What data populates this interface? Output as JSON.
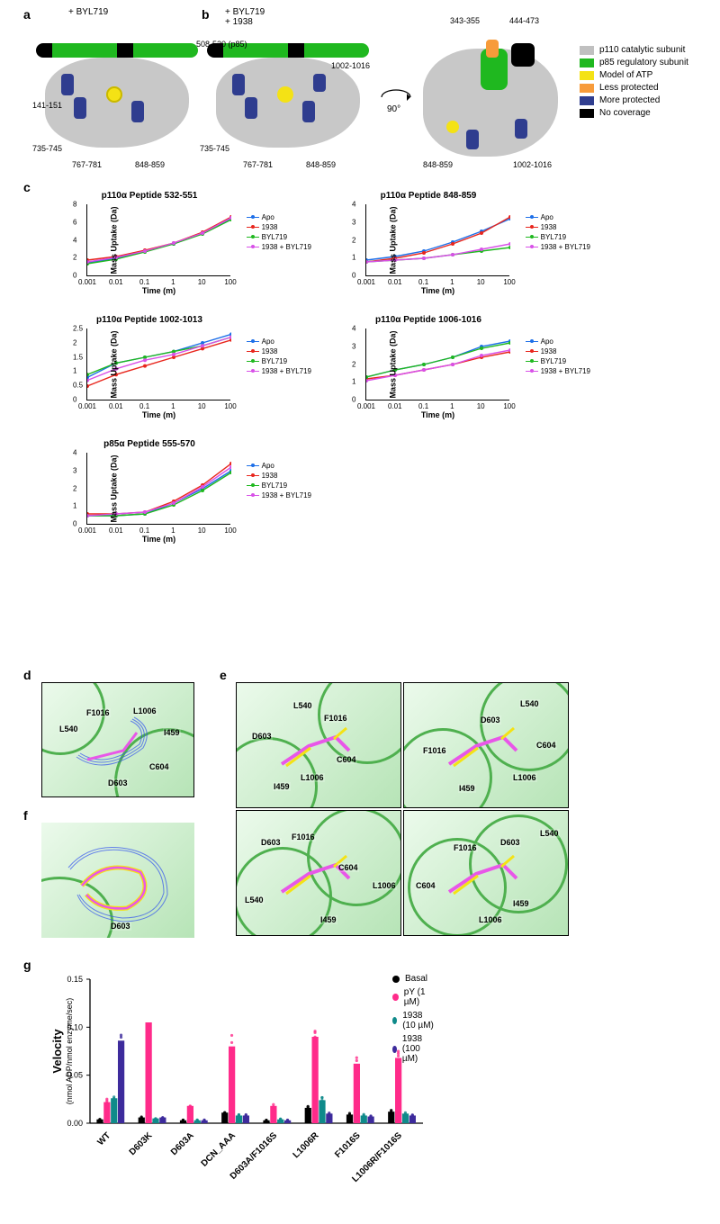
{
  "panels": {
    "a": "a",
    "b": "b",
    "c": "c",
    "d": "d",
    "e": "e",
    "f": "f",
    "g": "g"
  },
  "panel_a_title": "+ BYL719",
  "panel_b_title": "+ BYL719\n+ 1938",
  "rotate_label": "90°",
  "struct_region_labels": {
    "a1": "141-151",
    "a2": "735-745",
    "a3": "767-781",
    "a4": "848-859",
    "b1": "508-520 (p85)",
    "b2": "735-745",
    "b3": "767-781",
    "b4": "848-859",
    "b5": "1002-1016",
    "c1": "343-355",
    "c2": "444-473",
    "c3": "848-859",
    "c4": "1002-1016"
  },
  "legend_struct": [
    {
      "label": "p110 catalytic subunit",
      "color": "#c0c0c0"
    },
    {
      "label": "p85 regulatory subunit",
      "color": "#1fb81f"
    },
    {
      "label": "Model of ATP",
      "color": "#f4e215"
    },
    {
      "label": "Less protected",
      "color": "#f79b3a"
    },
    {
      "label": "More protected",
      "color": "#2f3d8f"
    },
    {
      "label": "No coverage",
      "color": "#000000"
    }
  ],
  "charts_common": {
    "ylabel": "Mass  Uptake (Da)",
    "xlabel": "Time (m)",
    "xticks": [
      "0.001",
      "0.01",
      "0.1",
      "1",
      "10",
      "100"
    ],
    "series": [
      {
        "name": "Apo",
        "color": "#1d6fe8"
      },
      {
        "name": "1938",
        "color": "#e8261d"
      },
      {
        "name": "BYL719",
        "color": "#1fb81f"
      },
      {
        "name": "1938 + BYL719",
        "color": "#d850e8"
      }
    ]
  },
  "charts": [
    {
      "title": "p110α Peptide 532-551",
      "ylim": [
        0,
        8
      ],
      "ystep": 2,
      "data": {
        "Apo": [
          1.5,
          2.0,
          2.8,
          3.6,
          4.8,
          6.4
        ],
        "1938": [
          1.8,
          2.2,
          2.9,
          3.7,
          4.9,
          6.6
        ],
        "BYL719": [
          1.4,
          1.9,
          2.7,
          3.6,
          4.7,
          6.3
        ],
        "1938 + BYL719": [
          1.6,
          2.1,
          2.8,
          3.7,
          4.8,
          6.5
        ]
      }
    },
    {
      "title": "p110α Peptide 848-859",
      "ylim": [
        0,
        4
      ],
      "ystep": 1,
      "data": {
        "Apo": [
          0.9,
          1.1,
          1.4,
          1.9,
          2.5,
          3.2
        ],
        "1938": [
          0.8,
          1.0,
          1.3,
          1.8,
          2.4,
          3.3
        ],
        "BYL719": [
          0.8,
          0.9,
          1.0,
          1.2,
          1.4,
          1.6
        ],
        "1938 + BYL719": [
          0.8,
          0.9,
          1.0,
          1.2,
          1.5,
          1.8
        ]
      }
    },
    {
      "title": "p110α Peptide 1002-1013",
      "ylim": [
        0,
        2.5
      ],
      "ystep": 0.5,
      "data": {
        "Apo": [
          0.8,
          1.3,
          1.5,
          1.7,
          2.0,
          2.3
        ],
        "1938": [
          0.5,
          0.9,
          1.2,
          1.5,
          1.8,
          2.1
        ],
        "BYL719": [
          0.9,
          1.3,
          1.5,
          1.7,
          1.9,
          2.2
        ],
        "1938 + BYL719": [
          0.7,
          1.1,
          1.4,
          1.6,
          1.9,
          2.2
        ]
      }
    },
    {
      "title": "p110α Peptide 1006-1016",
      "ylim": [
        0,
        4
      ],
      "ystep": 1,
      "data": {
        "Apo": [
          1.3,
          1.7,
          2.0,
          2.4,
          3.0,
          3.3
        ],
        "1938": [
          1.2,
          1.4,
          1.7,
          2.0,
          2.4,
          2.7
        ],
        "BYL719": [
          1.3,
          1.7,
          2.0,
          2.4,
          2.9,
          3.2
        ],
        "1938 + BYL719": [
          1.1,
          1.4,
          1.7,
          2.0,
          2.5,
          2.8
        ]
      }
    },
    {
      "title": "p85α Peptide 555-570",
      "ylim": [
        0,
        4
      ],
      "ystep": 1,
      "data": {
        "Apo": [
          0.5,
          0.5,
          0.6,
          1.2,
          2.0,
          3.0
        ],
        "1938": [
          0.6,
          0.6,
          0.7,
          1.3,
          2.2,
          3.4
        ],
        "BYL719": [
          0.5,
          0.5,
          0.6,
          1.1,
          1.9,
          2.9
        ],
        "1938 + BYL719": [
          0.5,
          0.6,
          0.7,
          1.2,
          2.1,
          3.2
        ]
      }
    }
  ],
  "residues_d": [
    "L540",
    "F1016",
    "L1006",
    "I459",
    "C604",
    "D603"
  ],
  "residues_e": [
    "L540",
    "D603",
    "F1016",
    "C604",
    "L1006",
    "I459"
  ],
  "residue_f": "D603",
  "bar_chart": {
    "ylabel": "Velocity",
    "ylabel_sub": "(nmol ADP/nmol enzyme/sec)",
    "ylim": [
      0,
      0.15
    ],
    "ystep": 0.05,
    "categories": [
      "WT",
      "D603K",
      "D603A",
      "DCN_AAA",
      "D603A/F1016S",
      "L1006R",
      "F1016S",
      "L1006R/F1016S"
    ],
    "series": [
      {
        "name": "Basal",
        "color": "#000000"
      },
      {
        "name": "pY (1 µM)",
        "color": "#ff2b8a"
      },
      {
        "name": "1938 (10 µM)",
        "color": "#0f8a8a"
      },
      {
        "name": "1938 (100 µM)",
        "color": "#3d2b9c"
      }
    ],
    "data": {
      "WT": {
        "Basal": 0.004,
        "pY (1 µM)": 0.022,
        "1938 (10 µM)": 0.026,
        "1938 (100 µM)": 0.086
      },
      "D603K": {
        "Basal": 0.006,
        "pY (1 µM)": 0.105,
        "1938 (10 µM)": 0.005,
        "1938 (100 µM)": 0.006
      },
      "D603A": {
        "Basal": 0.003,
        "pY (1 µM)": 0.018,
        "1938 (10 µM)": 0.003,
        "1938 (100 µM)": 0.003
      },
      "DCN_AAA": {
        "Basal": 0.011,
        "pY (1 µM)": 0.08,
        "1938 (10 µM)": 0.008,
        "1938 (100 µM)": 0.008
      },
      "D603A/F1016S": {
        "Basal": 0.003,
        "pY (1 µM)": 0.018,
        "1938 (10 µM)": 0.004,
        "1938 (100 µM)": 0.003
      },
      "L1006R": {
        "Basal": 0.016,
        "pY (1 µM)": 0.09,
        "1938 (10 µM)": 0.024,
        "1938 (100 µM)": 0.01
      },
      "F1016S": {
        "Basal": 0.009,
        "pY (1 µM)": 0.062,
        "1938 (10 µM)": 0.008,
        "1938 (100 µM)": 0.007
      },
      "L1006R/F1016S": {
        "Basal": 0.012,
        "pY (1 µM)": 0.068,
        "1938 (10 µM)": 0.01,
        "1938 (100 µM)": 0.008
      }
    }
  },
  "colors": {
    "bg": "#ffffff",
    "green_ribbon": "#4fb04f",
    "ligand": "#e857e8",
    "mesh": "#3050f0"
  }
}
